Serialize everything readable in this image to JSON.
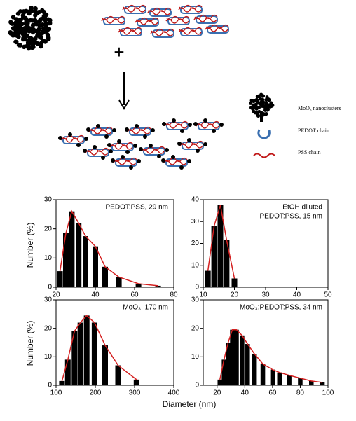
{
  "schematic": {
    "legend": [
      "MoO₃ nanoclusters",
      "PEDOT chain",
      "PSS chain"
    ]
  },
  "axis_labels": {
    "y": "Number (%)",
    "x": "Diameter (nm)"
  },
  "chart_data": [
    {
      "type": "bar",
      "annotation": [
        "PEDOT:PSS, 29 nm"
      ],
      "color": "#000000",
      "line_color": "#d42020",
      "x": [
        22,
        25,
        28,
        31.5,
        35,
        40,
        45,
        52,
        62,
        72
      ],
      "values": [
        5.5,
        18.5,
        26,
        22,
        17.5,
        14,
        7,
        3.5,
        1.2,
        0.5
      ],
      "xlim": [
        20,
        80
      ],
      "xticks": [
        20,
        40,
        60,
        80
      ],
      "ylim": [
        0,
        30
      ],
      "yticks": [
        0,
        10,
        20,
        30
      ]
    },
    {
      "type": "bar",
      "annotation": [
        "EtOH diluted",
        "PEDOT:PSS, 15 nm"
      ],
      "color": "#000000",
      "line_color": "#d42020",
      "x": [
        11.5,
        13.5,
        15.5,
        17.5,
        20
      ],
      "values": [
        7.5,
        28,
        37.5,
        21.5,
        4
      ],
      "xlim": [
        10,
        50
      ],
      "xticks": [
        10,
        20,
        30,
        40,
        50
      ],
      "ylim": [
        0,
        40
      ],
      "yticks": [
        0,
        10,
        20,
        30,
        40
      ]
    },
    {
      "type": "bar",
      "annotation": [
        "MoO₃, 170 nm"
      ],
      "color": "#000000",
      "line_color": "#d42020",
      "x": [
        115,
        130,
        147,
        162,
        178,
        198,
        225,
        258,
        305
      ],
      "values": [
        1.5,
        9,
        19,
        22,
        24.5,
        22,
        14,
        7,
        2
      ],
      "xlim": [
        100,
        400
      ],
      "xticks": [
        100,
        200,
        300,
        400
      ],
      "ylim": [
        0,
        30
      ],
      "yticks": [
        0,
        10,
        20,
        30
      ]
    },
    {
      "type": "bar",
      "annotation": [
        "MoO₃:PEDOT:PSS, 34 nm"
      ],
      "color": "#000000",
      "line_color": "#d42020",
      "x": [
        22,
        25,
        28,
        31,
        34,
        38,
        42,
        47,
        53,
        60,
        65,
        72,
        80,
        88,
        96
      ],
      "values": [
        2,
        9,
        15,
        19.5,
        19.5,
        17.5,
        14.5,
        11,
        7.5,
        5.5,
        4.5,
        3.5,
        2.5,
        1.5,
        1
      ],
      "xlim": [
        10,
        100
      ],
      "xticks": [
        20,
        40,
        60,
        80,
        100
      ],
      "ylim": [
        0,
        30
      ],
      "yticks": [
        0,
        10,
        20,
        30
      ]
    }
  ]
}
